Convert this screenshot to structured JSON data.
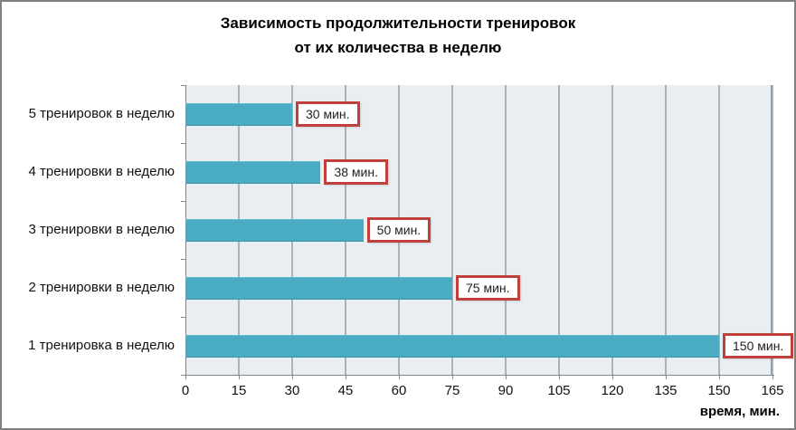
{
  "frame": {
    "border_color": "#7f7f7f",
    "background": "#ffffff"
  },
  "chart_data": {
    "type": "bar",
    "orientation": "horizontal",
    "title_lines": [
      "Зависимость продолжительности тренировок",
      "от их количества в неделю"
    ],
    "categories": [
      "5 тренировок в неделю",
      "4 тренировки в неделю",
      "3 тренировки в неделю",
      "2 тренировки в неделю",
      "1 тренировка в неделю"
    ],
    "values": [
      30,
      38,
      50,
      75,
      150
    ],
    "value_labels": [
      "30 мин.",
      "38 мин.",
      "50 мин.",
      "75 мин.",
      "150 мин."
    ],
    "xlabel": "время, мин.",
    "x_ticks": [
      "0",
      "15",
      "30",
      "45",
      "60",
      "75",
      "90",
      "105",
      "120",
      "135",
      "150",
      "165"
    ],
    "xlim": [
      0,
      165
    ],
    "grid": true,
    "legend": false,
    "colors": {
      "bar": "#4aabc5",
      "plot_bg": "#e9eef3",
      "gridline": "#aab2b9",
      "axis": "#7f878e",
      "value_label_border": "#c0403c",
      "value_label_bg": "#ffffff",
      "text": "#000000"
    }
  }
}
